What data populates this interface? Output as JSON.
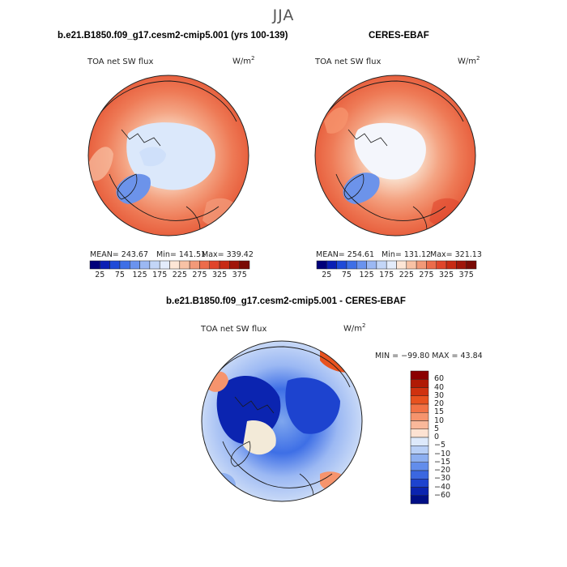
{
  "figure": {
    "season": "JJA",
    "units": "W/m",
    "units_exp": "2"
  },
  "chart_data": [
    {
      "type": "heatmap",
      "projection": "north-polar-stereographic",
      "title": "b.e21.B1850.f09_g17.cesm2-cmip5.001 (yrs 100-139)",
      "variable": "TOA net SW flux",
      "stats": {
        "mean_label": "MEAN= 243.67",
        "min_label": "Min= 141.51",
        "max_label": "Max= 339.42",
        "mean": 243.67,
        "min": 141.51,
        "max": 339.42
      },
      "colorbar": {
        "orientation": "horizontal",
        "levels": [
          25,
          50,
          75,
          100,
          125,
          150,
          175,
          200,
          225,
          250,
          275,
          300,
          325,
          350,
          375
        ],
        "tick_labels": [
          "25",
          "75",
          "125",
          "175",
          "225",
          "275",
          "325",
          "375"
        ],
        "colors": [
          "#00007a",
          "#0a1fb4",
          "#1f4ad8",
          "#3e6fe6",
          "#6a93ee",
          "#9bb8f3",
          "#c3d6f7",
          "#e3ecfb",
          "#fde6d6",
          "#f8c2a5",
          "#f29978",
          "#ec6c4b",
          "#e0452b",
          "#c72a14",
          "#a0150a",
          "#7a0a05"
        ]
      }
    },
    {
      "type": "heatmap",
      "projection": "north-polar-stereographic",
      "title": "CERES-EBAF",
      "variable": "TOA net SW flux",
      "stats": {
        "mean_label": "MEAN= 254.61",
        "min_label": "Min= 131.12",
        "max_label": "Max= 321.13",
        "mean": 254.61,
        "min": 131.12,
        "max": 321.13
      },
      "colorbar": {
        "orientation": "horizontal",
        "levels": [
          25,
          50,
          75,
          100,
          125,
          150,
          175,
          200,
          225,
          250,
          275,
          300,
          325,
          350,
          375
        ],
        "tick_labels": [
          "25",
          "75",
          "125",
          "175",
          "225",
          "275",
          "325",
          "375"
        ]
      }
    },
    {
      "type": "heatmap",
      "projection": "north-polar-stereographic",
      "title": "b.e21.B1850.f09_g17.cesm2-cmip5.001 - CERES-EBAF",
      "variable": "TOA net SW flux",
      "stats": {
        "min_max_label": "MIN = −99.80 MAX =  43.84",
        "min": -99.8,
        "max": 43.84
      },
      "colorbar": {
        "orientation": "vertical",
        "levels": [
          60,
          40,
          30,
          20,
          15,
          10,
          5,
          0,
          -5,
          -10,
          -15,
          -20,
          -30,
          -40,
          -60
        ],
        "tick_labels": [
          "60",
          "40",
          "30",
          "20",
          "15",
          "10",
          "5",
          "0",
          "−5",
          "−10",
          "−15",
          "−20",
          "−30",
          "−40",
          "−60"
        ],
        "colors": [
          "#8b0000",
          "#b01a05",
          "#d0320f",
          "#e8521f",
          "#f27245",
          "#f6946d",
          "#f9b89a",
          "#fde2d2",
          "#dde9fb",
          "#b8cff6",
          "#8daff0",
          "#628deb",
          "#3b67e0",
          "#1d43cf",
          "#0b24b0",
          "#000f86"
        ]
      }
    }
  ]
}
